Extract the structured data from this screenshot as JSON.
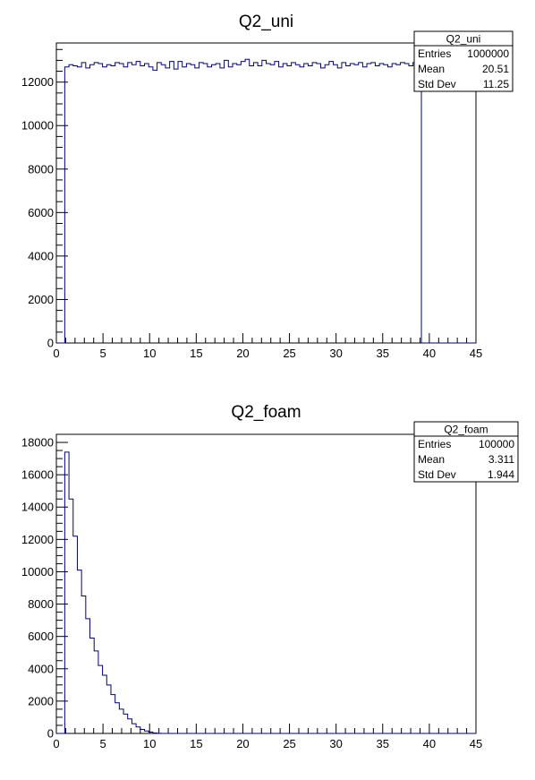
{
  "chart_data": [
    {
      "type": "histogram",
      "title": "Q2_uni",
      "xlabel": "",
      "ylabel": "",
      "xlim": [
        0,
        45
      ],
      "ylim": [
        0,
        13800
      ],
      "x_ticks": [
        "0",
        "5",
        "10",
        "15",
        "20",
        "25",
        "30",
        "35",
        "40",
        "45"
      ],
      "y_ticks": [
        "0",
        "2000",
        "4000",
        "6000",
        "8000",
        "10000",
        "12000"
      ],
      "bin_width": 0.45,
      "bin_start": 0,
      "values": [
        0,
        0,
        12700,
        12800,
        12750,
        12700,
        12900,
        12650,
        12800,
        12900,
        12850,
        12700,
        12800,
        12750,
        12900,
        12850,
        12700,
        12900,
        12800,
        12950,
        12750,
        12850,
        12700,
        12550,
        12900,
        12800,
        12650,
        12950,
        12600,
        12950,
        12700,
        12850,
        12800,
        12650,
        12900,
        12850,
        12700,
        12800,
        12850,
        12650,
        13000,
        12700,
        12850,
        12800,
        12950,
        13050,
        12750,
        12900,
        12750,
        13000,
        12850,
        12800,
        12950,
        12700,
        12850,
        12750,
        12900,
        12800,
        12700,
        12850,
        12750,
        12900,
        12850,
        12650,
        12800,
        12950,
        12800,
        12650,
        12900,
        12750,
        12850,
        12800,
        12900,
        12700,
        12850,
        12900,
        12750,
        12850,
        12800,
        12700,
        12850,
        12800,
        12900,
        12850,
        12750,
        12900,
        13000,
        0,
        0,
        0,
        0,
        0,
        0,
        0,
        0,
        0,
        0,
        0,
        0,
        0
      ],
      "stats": {
        "name": "Q2_uni",
        "rows": [
          {
            "label": "Entries",
            "value": "1000000"
          },
          {
            "label": "Mean",
            "value": "20.51"
          },
          {
            "label": "Std Dev",
            "value": "11.25"
          }
        ]
      },
      "line_color": "#000080"
    },
    {
      "type": "histogram",
      "title": "Q2_foam",
      "xlabel": "",
      "ylabel": "",
      "xlim": [
        0,
        45
      ],
      "ylim": [
        0,
        18500
      ],
      "x_ticks": [
        "0",
        "5",
        "10",
        "15",
        "20",
        "25",
        "30",
        "35",
        "40",
        "45"
      ],
      "y_ticks": [
        "0",
        "2000",
        "4000",
        "6000",
        "8000",
        "10000",
        "12000",
        "14000",
        "16000",
        "18000"
      ],
      "bin_width": 0.45,
      "bin_start": 0,
      "values": [
        0,
        0,
        17400,
        14500,
        12200,
        10100,
        8500,
        7100,
        5900,
        5100,
        4200,
        3600,
        3000,
        2400,
        1900,
        1500,
        1200,
        900,
        600,
        400,
        250,
        150,
        80,
        30,
        10,
        0,
        0,
        0,
        0,
        0,
        0,
        0,
        0,
        0,
        0,
        0,
        0,
        0,
        0,
        0,
        0,
        0,
        0,
        0,
        0,
        0,
        0,
        0,
        0,
        0,
        0,
        0,
        0,
        0,
        0,
        0,
        0,
        0,
        0,
        0,
        0,
        0,
        0,
        0,
        0,
        0,
        0,
        0,
        0,
        0,
        0,
        0,
        0,
        0,
        0,
        0,
        0,
        0,
        0,
        0,
        0,
        0,
        0,
        0,
        0,
        0,
        0,
        0,
        0,
        0,
        0,
        0,
        0,
        0,
        0,
        0,
        0,
        0,
        0,
        0
      ],
      "stats": {
        "name": "Q2_foam",
        "rows": [
          {
            "label": "Entries",
            "value": "100000"
          },
          {
            "label": "Mean",
            "value": "3.311"
          },
          {
            "label": "Std Dev",
            "value": "1.944"
          }
        ]
      },
      "line_color": "#000080"
    }
  ]
}
